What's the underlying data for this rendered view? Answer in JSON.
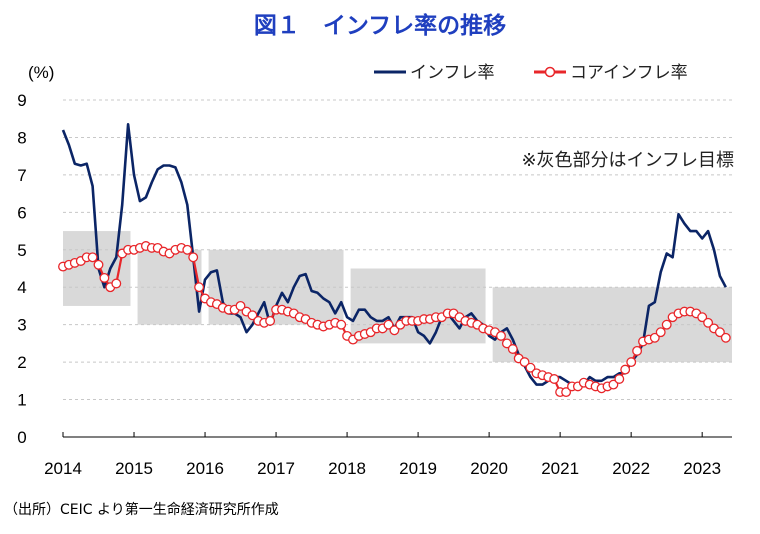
{
  "chart_data": {
    "type": "line",
    "title": "図１　インフレ率の推移",
    "ylabel": "(%)",
    "xlabel": "",
    "ylim": [
      0,
      9
    ],
    "yticks": [
      "0",
      "1",
      "2",
      "3",
      "4",
      "5",
      "6",
      "7",
      "8",
      "9"
    ],
    "xticks": [
      "2014",
      "2015",
      "2016",
      "2017",
      "2018",
      "2019",
      "2020",
      "2021",
      "2022",
      "2023"
    ],
    "x_range": [
      2014.0,
      2023.42
    ],
    "grid": "horizontal dashed",
    "legend_position": "top-right",
    "note": "※灰色部分はインフレ目標",
    "source": "（出所）CEIC より第一生命経済研究所作成",
    "target_band": [
      {
        "x0": 2014.0,
        "x1": 2014.95,
        "low": 3.5,
        "high": 5.5
      },
      {
        "x0": 2015.05,
        "x1": 2015.95,
        "low": 3.0,
        "high": 5.0
      },
      {
        "x0": 2016.05,
        "x1": 2017.95,
        "low": 3.0,
        "high": 5.0
      },
      {
        "x0": 2018.05,
        "x1": 2019.95,
        "low": 2.5,
        "high": 4.5
      },
      {
        "x0": 2020.05,
        "x1": 2023.42,
        "low": 2.0,
        "high": 4.0
      }
    ],
    "colors": {
      "headline": "#0b2566",
      "core": "#e8262a",
      "band": "#d9d9d9",
      "title": "#1f3fbf"
    },
    "series": [
      {
        "name": "インフレ率",
        "style": "line",
        "x_start": 2014.0,
        "x_step": 0.0833333,
        "values": [
          8.2,
          7.8,
          7.3,
          7.25,
          7.3,
          6.7,
          4.5,
          4.0,
          4.5,
          4.8,
          6.2,
          8.35,
          7.0,
          6.3,
          6.4,
          6.8,
          7.15,
          7.25,
          7.25,
          7.2,
          6.8,
          6.2,
          4.8,
          3.35,
          4.2,
          4.4,
          4.45,
          3.6,
          3.3,
          3.3,
          3.2,
          2.8,
          3.0,
          3.3,
          3.6,
          3.0,
          3.5,
          3.85,
          3.6,
          4.0,
          4.3,
          4.35,
          3.9,
          3.85,
          3.7,
          3.6,
          3.3,
          3.6,
          3.2,
          3.1,
          3.4,
          3.4,
          3.2,
          3.1,
          3.1,
          3.2,
          2.9,
          3.2,
          3.2,
          3.2,
          2.8,
          2.7,
          2.5,
          2.8,
          3.2,
          3.3,
          3.1,
          2.9,
          3.2,
          3.3,
          3.1,
          3.0,
          2.7,
          2.6,
          2.8,
          2.9,
          2.6,
          2.2,
          1.9,
          1.6,
          1.4,
          1.4,
          1.5,
          1.6,
          1.6,
          1.5,
          1.4,
          1.4,
          1.4,
          1.6,
          1.5,
          1.5,
          1.6,
          1.6,
          1.7,
          1.7,
          2.0,
          2.2,
          2.5,
          3.5,
          3.6,
          4.4,
          4.9,
          4.8,
          5.95,
          5.7,
          5.5,
          5.5,
          5.3,
          5.5,
          5.0,
          4.3,
          4.0
        ]
      },
      {
        "name": "コアインフレ率",
        "style": "line+markers",
        "x_start": 2014.0,
        "x_step": 0.0833333,
        "values": [
          4.55,
          4.6,
          4.65,
          4.7,
          4.8,
          4.8,
          4.6,
          4.25,
          4.0,
          4.1,
          4.9,
          5.0,
          5.0,
          5.05,
          5.1,
          5.05,
          5.05,
          4.95,
          4.9,
          5.0,
          5.05,
          5.0,
          4.8,
          4.0,
          3.7,
          3.6,
          3.55,
          3.45,
          3.4,
          3.4,
          3.5,
          3.35,
          3.25,
          3.1,
          3.05,
          3.1,
          3.4,
          3.4,
          3.35,
          3.3,
          3.2,
          3.15,
          3.05,
          3.0,
          2.95,
          3.0,
          3.05,
          3.0,
          2.7,
          2.6,
          2.7,
          2.75,
          2.8,
          2.9,
          2.9,
          3.0,
          2.85,
          3.0,
          3.1,
          3.1,
          3.1,
          3.15,
          3.15,
          3.2,
          3.2,
          3.3,
          3.3,
          3.2,
          3.1,
          3.05,
          3.0,
          2.9,
          2.85,
          2.8,
          2.7,
          2.5,
          2.35,
          2.1,
          2.0,
          1.85,
          1.7,
          1.65,
          1.6,
          1.55,
          1.2,
          1.2,
          1.35,
          1.35,
          1.45,
          1.4,
          1.35,
          1.3,
          1.35,
          1.4,
          1.55,
          1.8,
          2.0,
          2.3,
          2.55,
          2.6,
          2.65,
          2.8,
          3.0,
          3.2,
          3.3,
          3.35,
          3.35,
          3.3,
          3.2,
          3.05,
          2.9,
          2.8,
          2.65
        ]
      }
    ]
  }
}
